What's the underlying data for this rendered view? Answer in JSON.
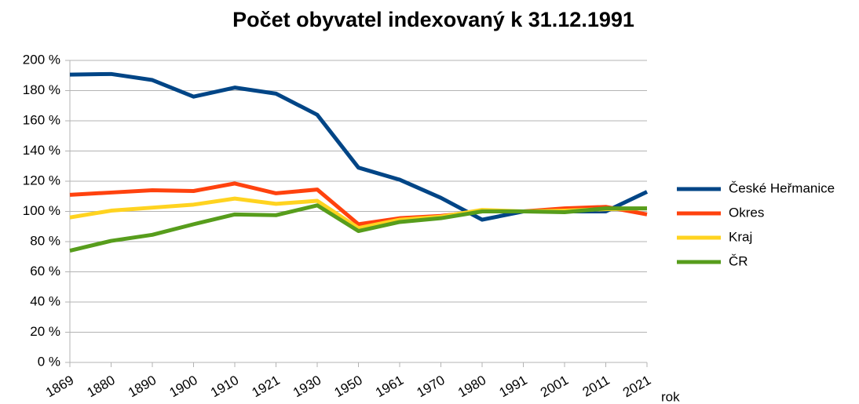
{
  "chart_data": {
    "type": "line",
    "title": "Počet obyvatel indexovaný k 31.12.1991",
    "x_label": "rok",
    "categories": [
      "1869",
      "1880",
      "1890",
      "1900",
      "1910",
      "1921",
      "1930",
      "1950",
      "1961",
      "1970",
      "1980",
      "1991",
      "2001",
      "2011",
      "2021"
    ],
    "series": [
      {
        "name": "České Heřmanice",
        "color": "#004586",
        "values": [
          190.6,
          191,
          187,
          176,
          182,
          178,
          164,
          129,
          121,
          109,
          94.5,
          100,
          100,
          100,
          113
        ]
      },
      {
        "name": "Okres",
        "color": "#ff420e",
        "values": [
          111,
          112.5,
          114,
          113.5,
          118.5,
          112,
          114.5,
          91.5,
          95.5,
          97,
          100,
          100,
          102,
          103,
          98
        ]
      },
      {
        "name": "Kraj",
        "color": "#ffd320",
        "values": [
          96,
          100.5,
          102.5,
          104.5,
          108.5,
          105,
          107,
          89,
          94.5,
          96.5,
          101,
          100,
          100.5,
          101.5,
          102
        ]
      },
      {
        "name": "ČR",
        "color": "#579d1c",
        "values": [
          74,
          80.5,
          84.5,
          91.5,
          98,
          97.5,
          104,
          87,
          93,
          95.5,
          100,
          100,
          99.5,
          102,
          102
        ]
      }
    ],
    "ylim": [
      0,
      200
    ],
    "yticks": [
      {
        "value": 0,
        "label": "0 %"
      },
      {
        "value": 20,
        "label": "20 %"
      },
      {
        "value": 40,
        "label": "40 %"
      },
      {
        "value": 60,
        "label": "60 %"
      },
      {
        "value": 80,
        "label": "80 %"
      },
      {
        "value": 100,
        "label": "100 %"
      },
      {
        "value": 120,
        "label": "120 %"
      },
      {
        "value": 140,
        "label": "140 %"
      },
      {
        "value": 160,
        "label": "160 %"
      },
      {
        "value": 180,
        "label": "180 %"
      },
      {
        "value": 200,
        "label": "200 %"
      }
    ],
    "grid": true,
    "legend": "right"
  }
}
